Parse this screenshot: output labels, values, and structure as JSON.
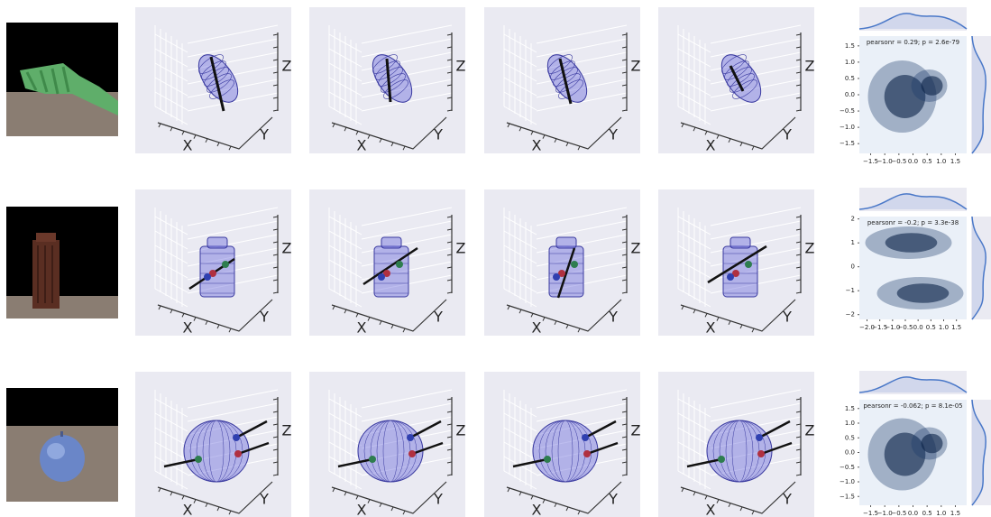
{
  "axis_labels": {
    "x": "X",
    "y": "Y",
    "z": "Z"
  },
  "rows": [
    {
      "joint": {
        "annotation": "pearsonr = 0.29; p = 2.6e-79",
        "xlim": [
          -1.9,
          1.9
        ],
        "ylim": [
          -1.8,
          1.8
        ],
        "xticks": [
          {
            "value": -1.5,
            "label": "−1.5"
          },
          {
            "value": -1,
            "label": "−1.0"
          },
          {
            "value": -0.5,
            "label": "−0.5"
          },
          {
            "value": 0,
            "label": "0.0"
          },
          {
            "value": 0.5,
            "label": "0.5"
          },
          {
            "value": 1,
            "label": "1.0"
          },
          {
            "value": 1.5,
            "label": "1.5"
          }
        ],
        "yticks": [
          {
            "value": 1.5,
            "label": "1.5"
          },
          {
            "value": 1,
            "label": "1.0"
          },
          {
            "value": 0.5,
            "label": "0.5"
          },
          {
            "value": 0,
            "label": "0.0"
          },
          {
            "value": -0.5,
            "label": "−0.5"
          },
          {
            "value": -1,
            "label": "−1.0"
          },
          {
            "value": -1.5,
            "label": "−1.5"
          }
        ]
      }
    },
    {
      "joint": {
        "annotation": "pearsonr = -0.2; p = 3.3e-38",
        "xlim": [
          -2.3,
          1.9
        ],
        "ylim": [
          -2.2,
          2.1
        ],
        "xticks": [
          {
            "value": -2,
            "label": "−2.0"
          },
          {
            "value": -1.5,
            "label": "−1.5"
          },
          {
            "value": -1,
            "label": "−1.0"
          },
          {
            "value": -0.5,
            "label": "−0.5"
          },
          {
            "value": 0,
            "label": "0.0"
          },
          {
            "value": 0.5,
            "label": "0.5"
          },
          {
            "value": 1,
            "label": "1.0"
          },
          {
            "value": 1.5,
            "label": "1.5"
          }
        ],
        "yticks": [
          2,
          1,
          0,
          {
            "value": -1,
            "label": "−1"
          },
          {
            "value": -2,
            "label": "−2"
          }
        ]
      }
    },
    {
      "joint": {
        "annotation": "pearsonr = -0.062; p = 8.1e-05",
        "xlim": [
          -1.9,
          1.9
        ],
        "ylim": [
          -1.8,
          1.8
        ],
        "xticks": [
          {
            "value": -1.5,
            "label": "−1.5"
          },
          {
            "value": -1,
            "label": "−1.0"
          },
          {
            "value": -0.5,
            "label": "−0.5"
          },
          {
            "value": 0,
            "label": "0.0"
          },
          {
            "value": 0.5,
            "label": "0.5"
          },
          {
            "value": 1,
            "label": "1.0"
          },
          {
            "value": 1.5,
            "label": "1.5"
          }
        ],
        "yticks": [
          {
            "value": 1.5,
            "label": "1.5"
          },
          {
            "value": 1,
            "label": "1.0"
          },
          {
            "value": 0.5,
            "label": "0.5"
          },
          {
            "value": 0,
            "label": "0.0"
          },
          {
            "value": -0.5,
            "label": "−0.5"
          },
          {
            "value": -1,
            "label": "−1.0"
          },
          {
            "value": -1.5,
            "label": "−1.5"
          }
        ]
      }
    }
  ]
}
